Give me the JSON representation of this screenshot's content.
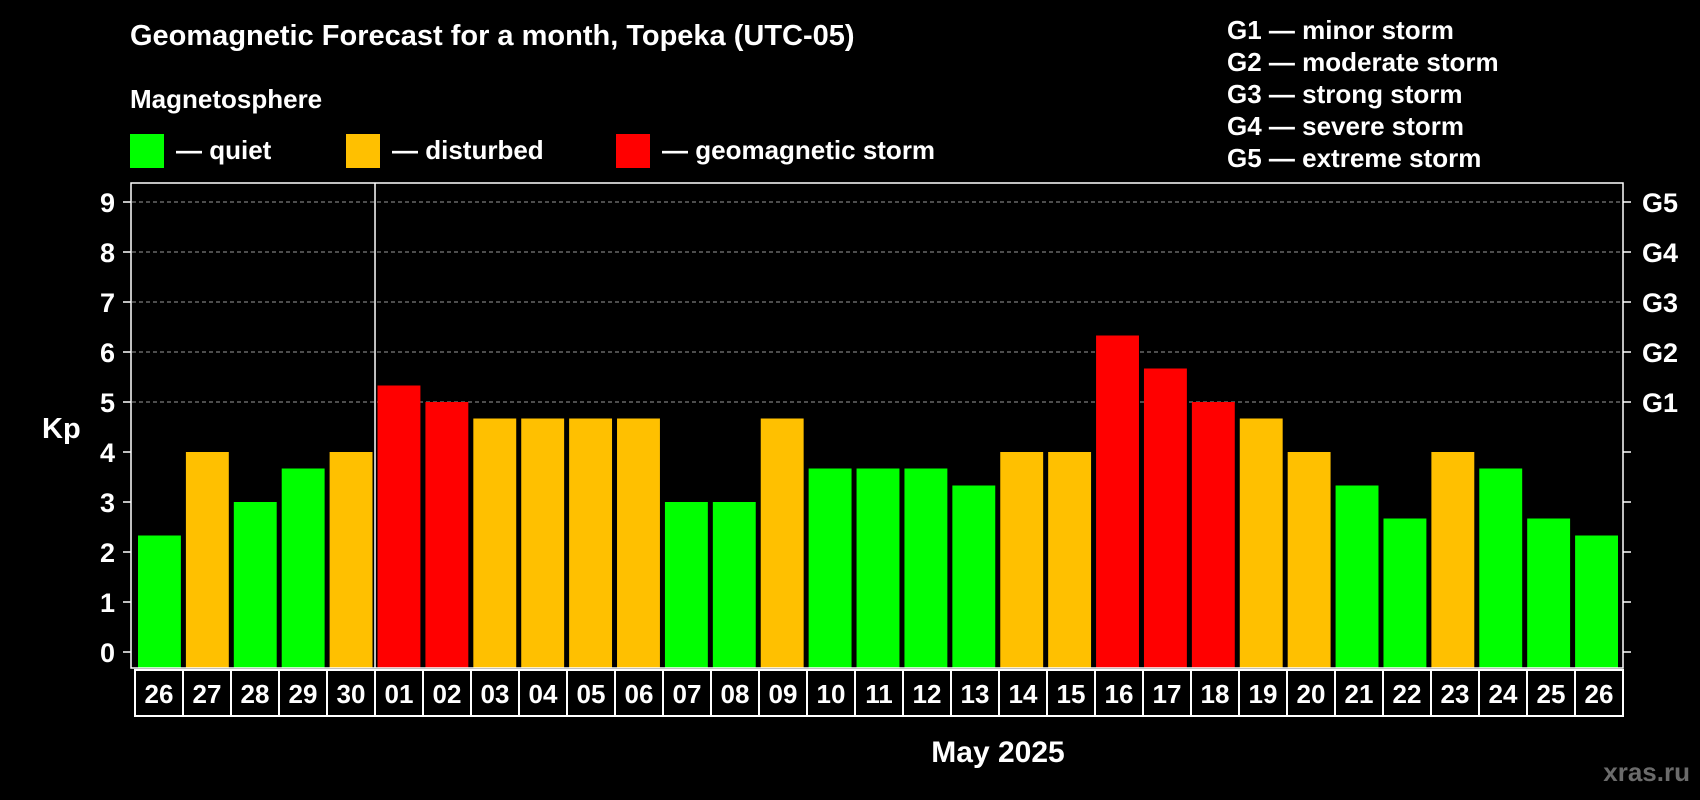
{
  "title": "Geomagnetic Forecast for a month, Topeka (UTC-05)",
  "legend_heading": "Magnetosphere",
  "legend": [
    {
      "label": "— quiet",
      "color": "#00ff00"
    },
    {
      "label": "— disturbed",
      "color": "#ffc000"
    },
    {
      "label": "— geomagnetic storm",
      "color": "#ff0000"
    }
  ],
  "storm_scale": [
    "G1 — minor storm",
    "G2 — moderate storm",
    "G3 — strong storm",
    "G4 — severe storm",
    "G5 — extreme storm"
  ],
  "watermark": "xras.ru",
  "colors": {
    "quiet": "#00ff00",
    "disturbed": "#ffc000",
    "storm": "#ff0000",
    "background": "#000000",
    "axis": "#ffffff"
  },
  "chart_data": {
    "type": "bar",
    "ylabel": "Kp",
    "xlabel": "May 2025",
    "ylim": [
      0,
      9.3
    ],
    "yticks": [
      "0",
      "1",
      "2",
      "3",
      "4",
      "5",
      "6",
      "7",
      "8",
      "9"
    ],
    "right_tick_labels": [
      {
        "y": 5,
        "label": "G1"
      },
      {
        "y": 6,
        "label": "G2"
      },
      {
        "y": 7,
        "label": "G3"
      },
      {
        "y": 8,
        "label": "G4"
      },
      {
        "y": 9,
        "label": "G5"
      }
    ],
    "grid": "horizontal dashed at 5-9",
    "month_divider_after": "30",
    "categories": [
      "26",
      "27",
      "28",
      "29",
      "30",
      "01",
      "02",
      "03",
      "04",
      "05",
      "06",
      "07",
      "08",
      "09",
      "10",
      "11",
      "12",
      "13",
      "14",
      "15",
      "16",
      "17",
      "18",
      "19",
      "20",
      "21",
      "22",
      "23",
      "24",
      "25",
      "26"
    ],
    "values": [
      2.33,
      4.0,
      3.0,
      3.67,
      4.0,
      5.33,
      5.0,
      4.67,
      4.67,
      4.67,
      4.67,
      3.0,
      3.0,
      4.67,
      3.67,
      3.67,
      3.67,
      3.33,
      4.0,
      4.0,
      6.33,
      5.67,
      5.0,
      4.67,
      4.0,
      3.33,
      2.67,
      4.0,
      3.67,
      2.67,
      2.33
    ],
    "levels": [
      "quiet",
      "disturbed",
      "quiet",
      "quiet",
      "disturbed",
      "storm",
      "storm",
      "disturbed",
      "disturbed",
      "disturbed",
      "disturbed",
      "quiet",
      "quiet",
      "disturbed",
      "quiet",
      "quiet",
      "quiet",
      "quiet",
      "disturbed",
      "disturbed",
      "storm",
      "storm",
      "storm",
      "disturbed",
      "disturbed",
      "quiet",
      "quiet",
      "disturbed",
      "quiet",
      "quiet",
      "quiet"
    ]
  }
}
